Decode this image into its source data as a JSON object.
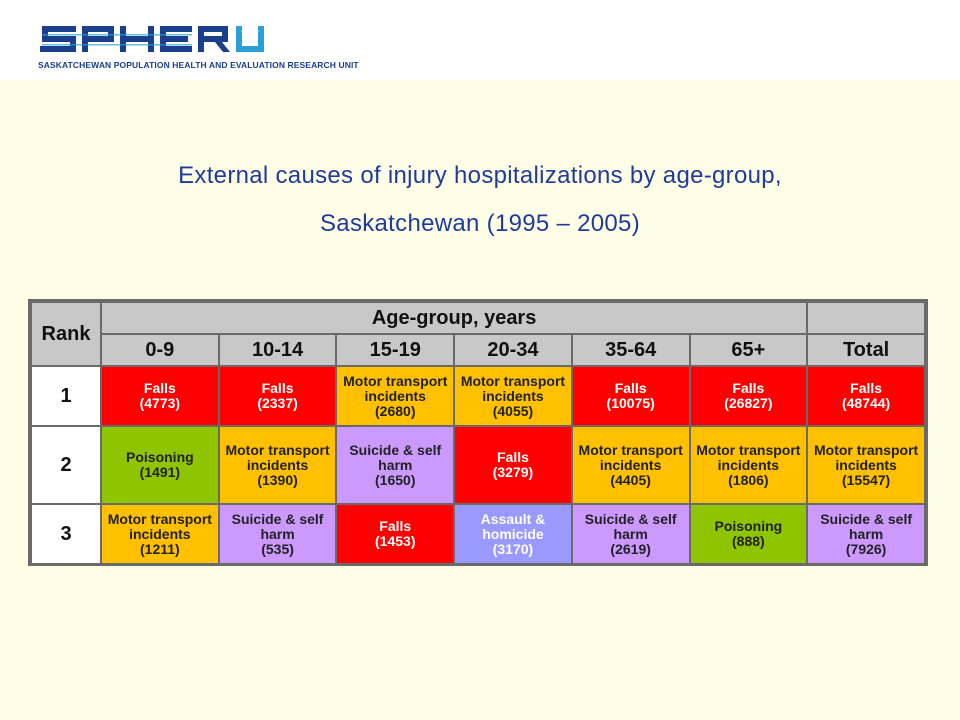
{
  "brand": {
    "logo_text": "SPHERU",
    "tagline": "SASKATCHEWAN POPULATION HEALTH AND EVALUATION RESEARCH UNIT",
    "logo_color": "#1a3f8c",
    "logo_accent": "#2a9fd8"
  },
  "title": {
    "line1": "External causes of injury hospitalizations by age-group,",
    "line2": "Saskatchewan (1995 – 2005)"
  },
  "table": {
    "rank_header": "Rank",
    "group_header": "Age-group, years",
    "columns": [
      "0-9",
      "10-14",
      "15-19",
      "20-34",
      "35-64",
      "65+",
      "Total"
    ],
    "rows": [
      {
        "rank": "1",
        "cells": [
          {
            "label": "Falls",
            "count": "(4773)",
            "color": "red"
          },
          {
            "label": "Falls",
            "count": "(2337)",
            "color": "red"
          },
          {
            "label": "Motor transport incidents",
            "count": "(2680)",
            "color": "orange"
          },
          {
            "label": "Motor transport incidents",
            "count": "(4055)",
            "color": "orange"
          },
          {
            "label": "Falls",
            "count": "(10075)",
            "color": "red"
          },
          {
            "label": "Falls",
            "count": "(26827)",
            "color": "red"
          },
          {
            "label": "Falls",
            "count": "(48744)",
            "color": "red"
          }
        ]
      },
      {
        "rank": "2",
        "cells": [
          {
            "label": "Poisoning",
            "count": "(1491)",
            "color": "green"
          },
          {
            "label": "Motor transport incidents",
            "count": "(1390)",
            "color": "orange"
          },
          {
            "label": "Suicide & self harm",
            "count": "(1650)",
            "color": "purple"
          },
          {
            "label": "Falls",
            "count": "(3279)",
            "color": "red"
          },
          {
            "label": "Motor transport incidents",
            "count": "(4405)",
            "color": "orange"
          },
          {
            "label": "Motor transport incidents",
            "count": "(1806)",
            "color": "orange"
          },
          {
            "label": "Motor transport incidents",
            "count": "(15547)",
            "color": "orange"
          }
        ]
      },
      {
        "rank": "3",
        "cells": [
          {
            "label": "Motor transport incidents",
            "count": "(1211)",
            "color": "orange"
          },
          {
            "label": "Suicide & self harm",
            "count": "(535)",
            "color": "purple"
          },
          {
            "label": "Falls",
            "count": "(1453)",
            "color": "red"
          },
          {
            "label": "Assault & homicide",
            "count": "(3170)",
            "color": "blue"
          },
          {
            "label": "Suicide & self harm",
            "count": "(2619)",
            "color": "purple"
          },
          {
            "label": "Poisoning",
            "count": "(888)",
            "color": "green"
          },
          {
            "label": "Suicide & self harm",
            "count": "(7926)",
            "color": "purple"
          }
        ]
      }
    ],
    "colors": {
      "red": "#ff0000",
      "orange": "#ffc000",
      "purple": "#cc99ff",
      "green": "#8fc400",
      "blue": "#9999ff",
      "header": "#c8c8c8"
    }
  }
}
